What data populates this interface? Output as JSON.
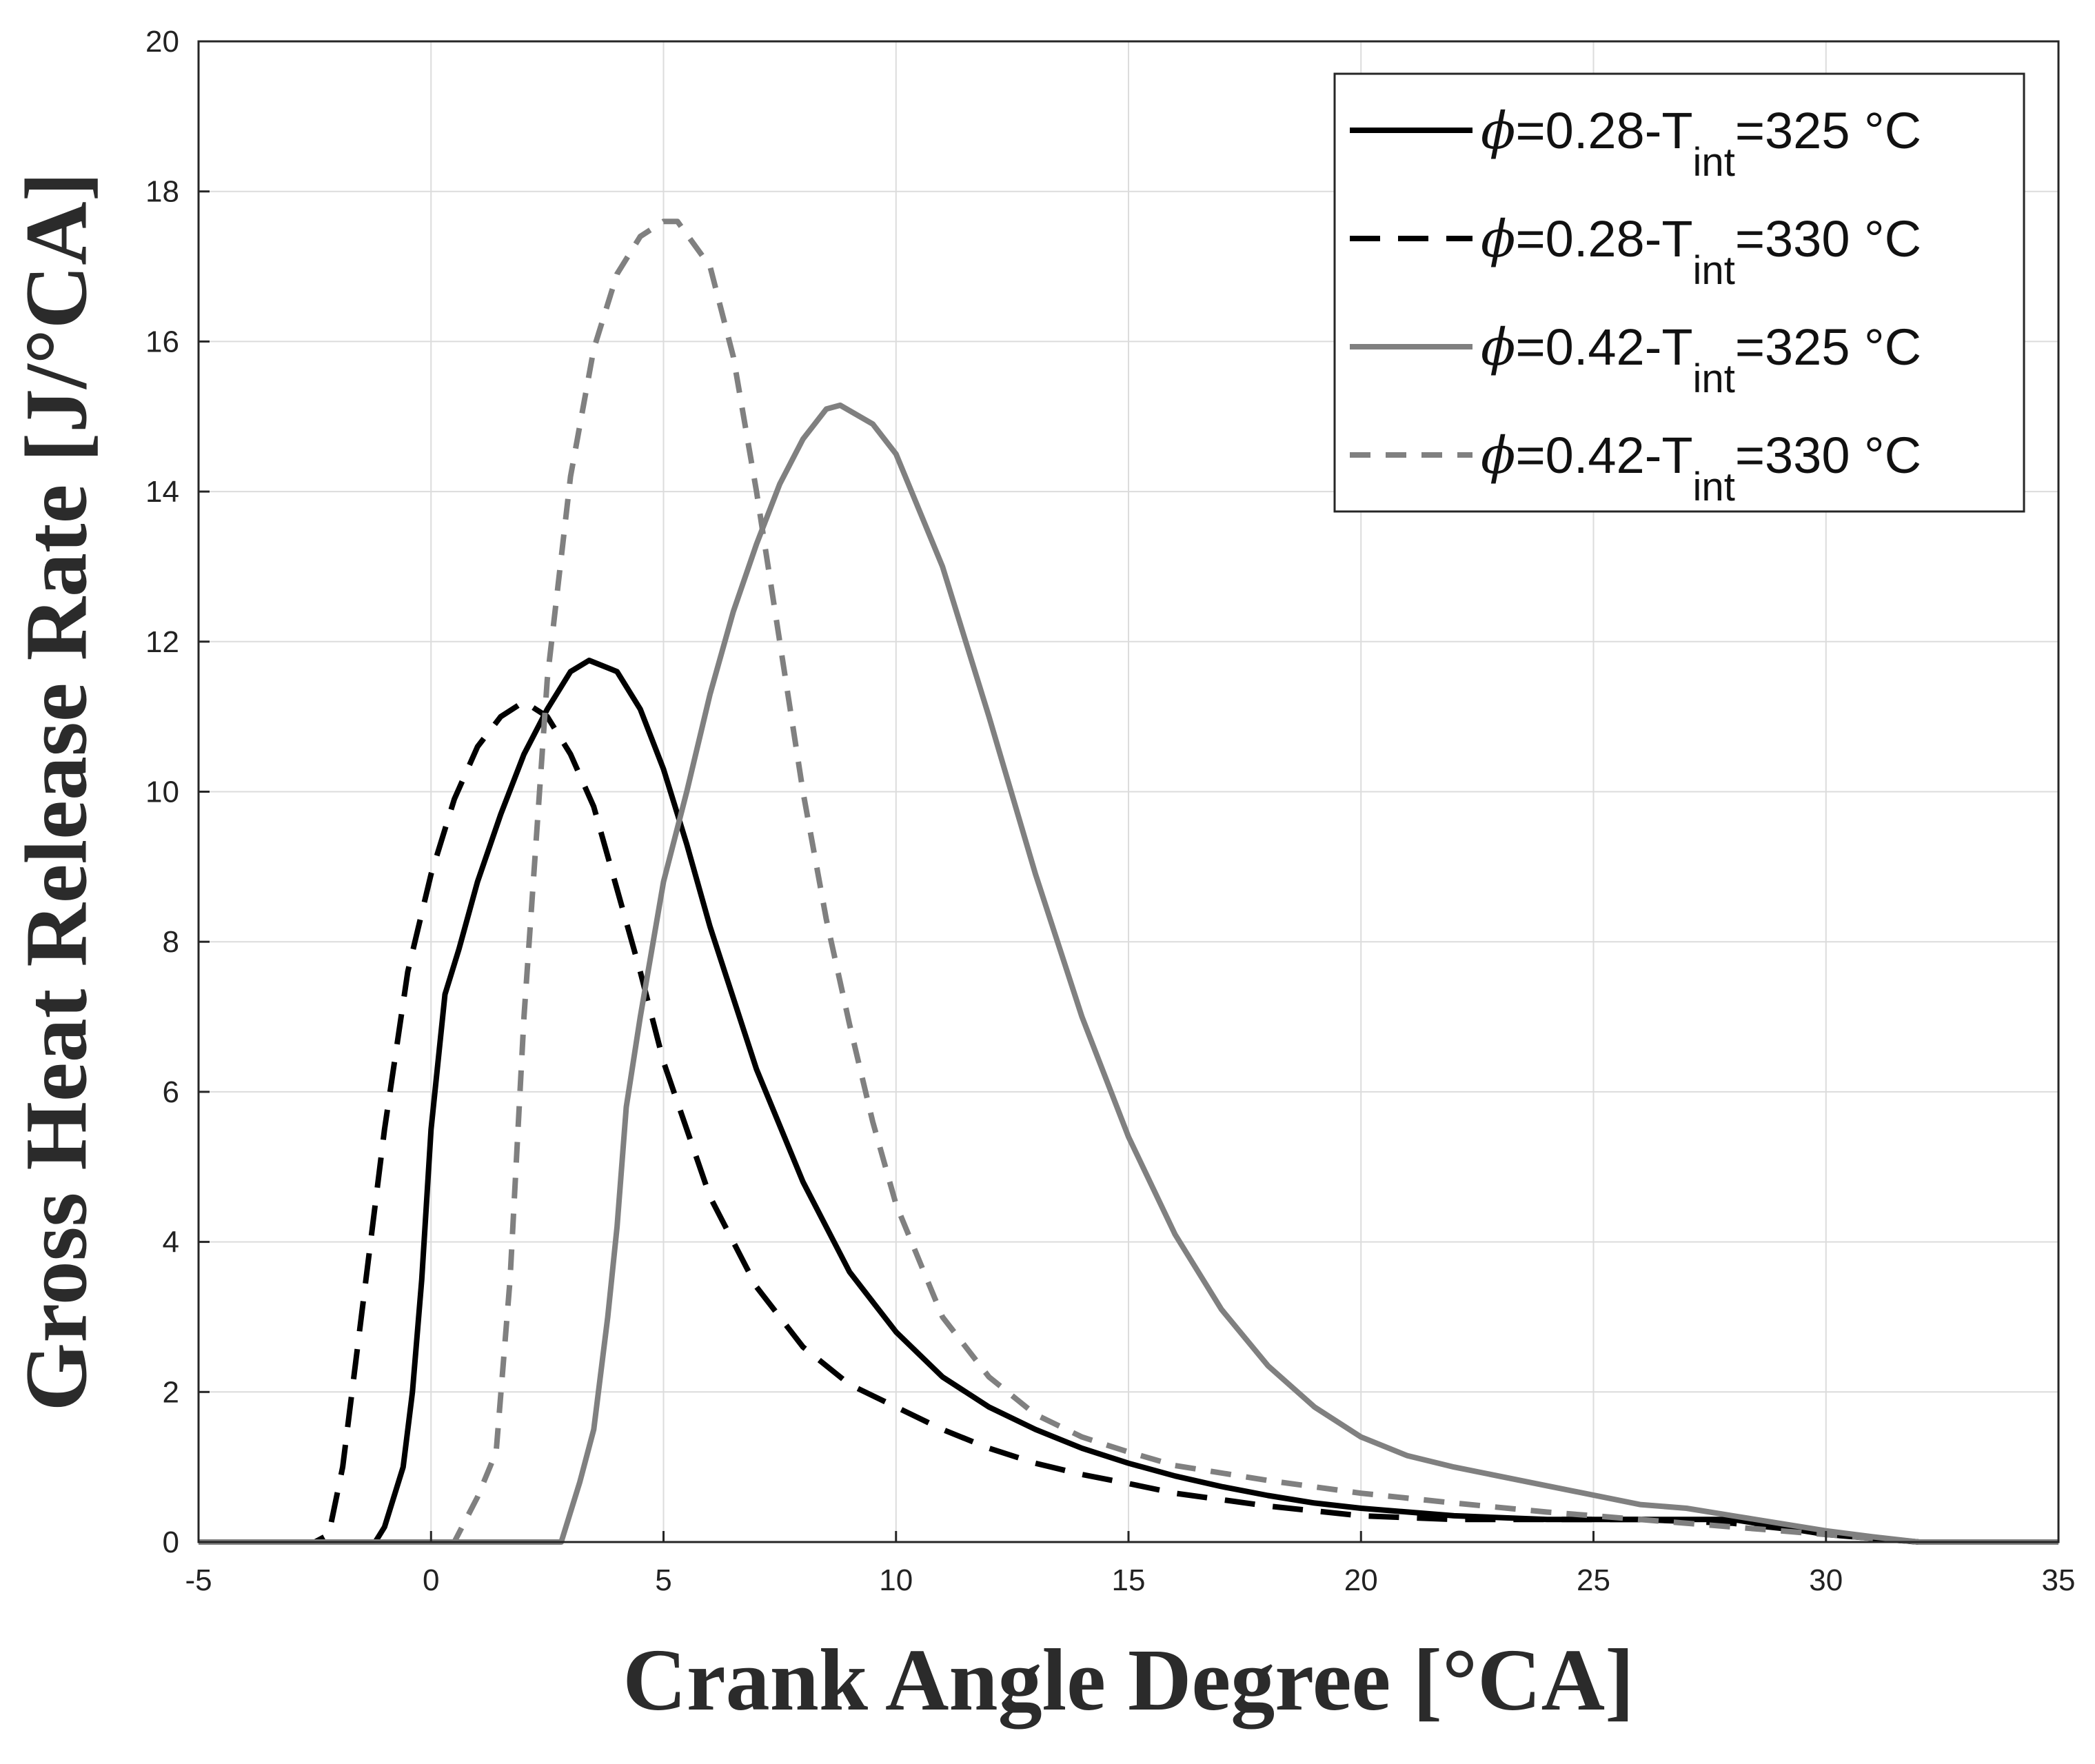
{
  "chart_data": {
    "type": "line",
    "title": "",
    "xlabel": "Crank Angle Degree [°CA]",
    "ylabel": "Gross Heat Release Rate [J/°CA]",
    "xlim": [
      -5,
      35
    ],
    "ylim": [
      0,
      20
    ],
    "xticks": [
      -5,
      0,
      5,
      10,
      15,
      20,
      25,
      30,
      35
    ],
    "yticks": [
      0,
      2,
      4,
      6,
      8,
      10,
      12,
      14,
      16,
      18,
      20
    ],
    "xtick_labels": [
      "-5",
      "0",
      "5",
      "10",
      "15",
      "20",
      "25",
      "30",
      "35"
    ],
    "ytick_labels": [
      "0",
      "2",
      "4",
      "6",
      "8",
      "10",
      "12",
      "14",
      "16",
      "18",
      "20"
    ],
    "grid": true,
    "legend_position": "top-right",
    "series": [
      {
        "name": "ϕ=0.28-Tint=325 °C",
        "legend": {
          "phi": "ϕ",
          "pre": "=0.28-T",
          "sub": "int",
          "post": "=325 °C"
        },
        "color": "#000000",
        "dash": "solid",
        "x": [
          -5,
          -1.2,
          -1.0,
          -0.6,
          -0.4,
          -0.2,
          0,
          0.3,
          0.6,
          1.0,
          1.5,
          2.0,
          2.5,
          3.0,
          3.4,
          4.0,
          4.5,
          5.0,
          5.5,
          6.0,
          7.0,
          8.0,
          9.0,
          10.0,
          11.0,
          12.0,
          13.0,
          14.0,
          15.0,
          16.0,
          17.0,
          18.0,
          19.0,
          20.0,
          22.0,
          24.0,
          26.0,
          27.0,
          28.0,
          29.0,
          30.0,
          31.0,
          32.0,
          35.0
        ],
        "y": [
          0,
          0,
          0.2,
          1.0,
          2.0,
          3.5,
          5.5,
          7.3,
          7.9,
          8.8,
          9.7,
          10.5,
          11.1,
          11.6,
          11.75,
          11.6,
          11.1,
          10.3,
          9.3,
          8.2,
          6.3,
          4.8,
          3.6,
          2.8,
          2.2,
          1.8,
          1.5,
          1.25,
          1.05,
          0.88,
          0.74,
          0.62,
          0.52,
          0.45,
          0.35,
          0.3,
          0.3,
          0.3,
          0.3,
          0.2,
          0.1,
          0.05,
          0,
          0
        ]
      },
      {
        "name": "ϕ=0.28-Tint=330 °C",
        "legend": {
          "phi": "ϕ",
          "pre": "=0.28-T",
          "sub": "int",
          "post": "=330 °C"
        },
        "color": "#000000",
        "dash": "long-dash",
        "x": [
          -5,
          -2.5,
          -2.2,
          -1.9,
          -1.5,
          -1.0,
          -0.5,
          0,
          0.5,
          1.0,
          1.5,
          2.0,
          2.5,
          3.0,
          3.5,
          4.0,
          4.5,
          5.0,
          6.0,
          7.0,
          8.0,
          9.0,
          10.0,
          11.0,
          12.0,
          13.0,
          14.0,
          15.0,
          16.0,
          18.0,
          20.0,
          22.0,
          24.0,
          26.0,
          28.0,
          30.0,
          32.0,
          35.0
        ],
        "y": [
          0,
          0,
          0.1,
          1.0,
          3.0,
          5.5,
          7.6,
          8.9,
          9.9,
          10.6,
          11.0,
          11.2,
          11.0,
          10.5,
          9.8,
          8.7,
          7.6,
          6.4,
          4.6,
          3.4,
          2.6,
          2.1,
          1.8,
          1.5,
          1.25,
          1.05,
          0.9,
          0.78,
          0.65,
          0.48,
          0.35,
          0.3,
          0.3,
          0.3,
          0.25,
          0.12,
          0,
          0
        ]
      },
      {
        "name": "ϕ=0.42-Tint=325 °C",
        "legend": {
          "phi": "ϕ",
          "pre": "=0.42-T",
          "sub": "int",
          "post": "=325 °C"
        },
        "color": "#808080",
        "dash": "solid",
        "x": [
          -5,
          2.8,
          3.2,
          3.5,
          3.8,
          4.0,
          4.2,
          4.5,
          5.0,
          5.5,
          6.0,
          6.5,
          7.0,
          7.5,
          8.0,
          8.5,
          8.8,
          9.5,
          10.0,
          11.0,
          12.0,
          13.0,
          14.0,
          15.0,
          16.0,
          17.0,
          18.0,
          19.0,
          20.0,
          21.0,
          22.0,
          24.0,
          26.0,
          27.0,
          28.0,
          29.0,
          30.0,
          31.0,
          32.0,
          35.0
        ],
        "y": [
          0,
          0,
          0.8,
          1.5,
          3.0,
          4.2,
          5.8,
          7.0,
          8.8,
          10.0,
          11.3,
          12.4,
          13.3,
          14.1,
          14.7,
          15.1,
          15.15,
          14.9,
          14.5,
          13.0,
          11.0,
          8.9,
          7.0,
          5.4,
          4.1,
          3.1,
          2.35,
          1.8,
          1.4,
          1.15,
          1.0,
          0.75,
          0.5,
          0.45,
          0.35,
          0.25,
          0.15,
          0.07,
          0,
          0
        ]
      },
      {
        "name": "ϕ=0.42-Tint=330 °C",
        "legend": {
          "phi": "ϕ",
          "pre": "=0.42-T",
          "sub": "int",
          "post": "=330 °C"
        },
        "color": "#808080",
        "dash": "short-dash",
        "x": [
          -5,
          0.5,
          1.0,
          1.4,
          1.7,
          2.0,
          2.5,
          3.0,
          3.5,
          4.0,
          4.5,
          5.0,
          5.3,
          6.0,
          6.5,
          7.0,
          7.5,
          8.0,
          8.5,
          9.0,
          9.5,
          10.0,
          11.0,
          12.0,
          13.0,
          14.0,
          15.0,
          16.0,
          18.0,
          20.0,
          22.0,
          24.0,
          26.0,
          28.0,
          30.0,
          32.0,
          35.0
        ],
        "y": [
          0,
          0,
          0.6,
          1.2,
          3.5,
          7.0,
          11.5,
          14.2,
          15.9,
          16.9,
          17.4,
          17.6,
          17.6,
          17.0,
          15.8,
          14.0,
          12.0,
          10.0,
          8.3,
          6.9,
          5.6,
          4.5,
          3.0,
          2.2,
          1.7,
          1.4,
          1.2,
          1.02,
          0.82,
          0.65,
          0.52,
          0.4,
          0.3,
          0.2,
          0.1,
          0,
          0
        ]
      }
    ]
  }
}
